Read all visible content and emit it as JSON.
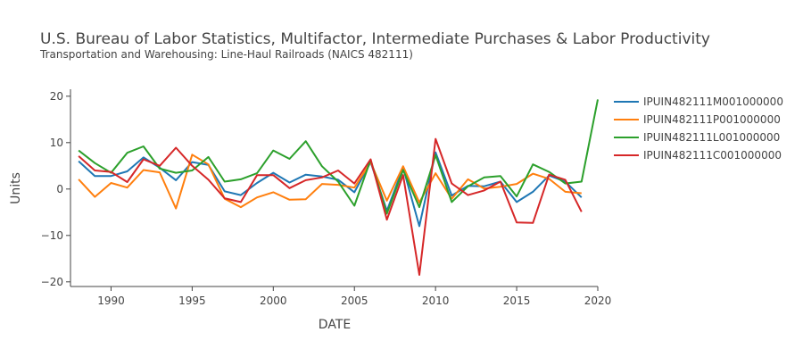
{
  "chart_data": {
    "type": "line",
    "title": "U.S. Bureau of Labor Statistics, Multifactor, Intermediate Purchases & Labor Productivity",
    "subtitle": "Transportation and Warehousing: Line-Haul Railroads (NAICS 482111)",
    "xlabel": "DATE",
    "ylabel": "Units",
    "xlim": [
      1987.5,
      2020
    ],
    "ylim": [
      -21,
      21.5
    ],
    "xticks": [
      1990,
      1995,
      2000,
      2005,
      2010,
      2015,
      2020
    ],
    "yticks": [
      -20,
      -10,
      0,
      10,
      20
    ],
    "grid": false,
    "legend_position": "right",
    "x": [
      1988,
      1989,
      1990,
      1991,
      1992,
      1993,
      1994,
      1995,
      1996,
      1997,
      1998,
      1999,
      2000,
      2001,
      2002,
      2003,
      2004,
      2005,
      2006,
      2007,
      2008,
      2009,
      2010,
      2011,
      2012,
      2013,
      2014,
      2015,
      2016,
      2017,
      2018,
      2019,
      2020
    ],
    "series": [
      {
        "name": "IPUIN482111M001000000",
        "color": "#1f77b4",
        "values": [
          6.0,
          2.8,
          2.8,
          3.8,
          6.8,
          4.6,
          1.9,
          5.8,
          5.2,
          -0.5,
          -1.3,
          1.3,
          3.5,
          1.4,
          3.1,
          2.7,
          2.0,
          -0.7,
          5.8,
          -4.7,
          4.6,
          -8.0,
          7.9,
          -1.4,
          0.7,
          0.6,
          1.6,
          -2.8,
          -0.6,
          2.9,
          1.6,
          -1.8,
          null
        ]
      },
      {
        "name": "IPUIN482111P001000000",
        "color": "#ff7f0e",
        "values": [
          2.1,
          -1.7,
          1.3,
          0.3,
          4.1,
          3.6,
          -4.2,
          7.4,
          5.3,
          -2.1,
          -3.9,
          -1.8,
          -0.7,
          -2.3,
          -2.2,
          1.1,
          0.9,
          0.3,
          5.8,
          -2.5,
          4.9,
          -2.9,
          3.4,
          -2.1,
          2.1,
          0.1,
          0.5,
          1.1,
          3.3,
          2.2,
          -0.6,
          -0.9,
          null
        ]
      },
      {
        "name": "IPUIN482111L001000000",
        "color": "#2ca02c",
        "values": [
          8.3,
          5.6,
          3.5,
          7.8,
          9.2,
          4.4,
          3.5,
          4.0,
          6.9,
          1.6,
          2.1,
          3.4,
          8.3,
          6.5,
          10.3,
          4.9,
          1.6,
          -3.6,
          6.3,
          -5.3,
          4.1,
          -3.9,
          7.3,
          -2.8,
          0.6,
          2.5,
          2.8,
          -1.6,
          5.3,
          3.7,
          1.2,
          1.6,
          19.3
        ]
      },
      {
        "name": "IPUIN482111C001000000",
        "color": "#d62728",
        "values": [
          7.1,
          4.0,
          3.7,
          1.5,
          6.4,
          5.0,
          8.9,
          5.0,
          2.0,
          -2.0,
          -2.8,
          3.0,
          3.0,
          0.2,
          1.9,
          2.5,
          4.0,
          1.2,
          6.4,
          -6.6,
          3.0,
          -18.5,
          10.8,
          1.2,
          -1.3,
          -0.3,
          1.6,
          -7.2,
          -7.3,
          3.1,
          2.0,
          -4.9,
          null
        ]
      }
    ]
  }
}
